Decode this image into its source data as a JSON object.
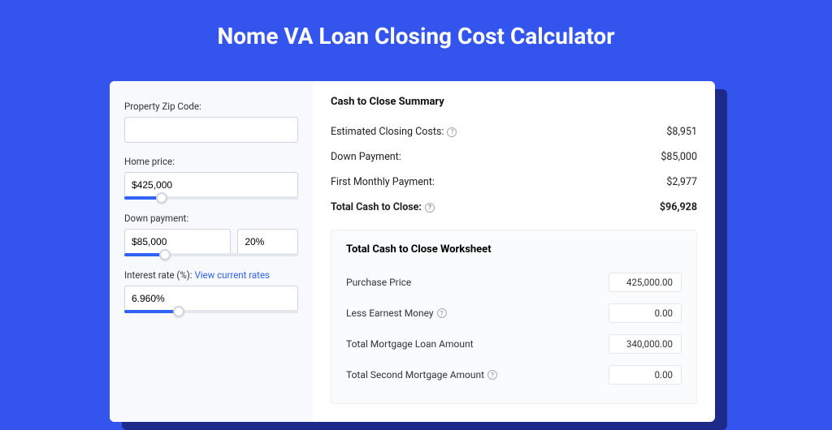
{
  "colors": {
    "page_bg": "#3355ee",
    "accent": "#3062f4",
    "card_bg": "#ffffff",
    "panel_bg": "#f7f9fc",
    "border": "#d0d5dd",
    "text": "#222222"
  },
  "header": {
    "title": "Nome VA Loan Closing Cost Calculator"
  },
  "form": {
    "zip_label": "Property Zip Code:",
    "zip_value": "",
    "home_price_label": "Home price:",
    "home_price_value": "$425,000",
    "home_price_slider_pct": 20,
    "down_payment_label": "Down payment:",
    "down_payment_value": "$85,000",
    "down_payment_pct": "20%",
    "down_payment_slider_pct": 22,
    "interest_label": "Interest rate (%):",
    "interest_link": "View current rates",
    "interest_value": "6.960%",
    "interest_slider_pct": 30
  },
  "summary": {
    "title": "Cash to Close Summary",
    "rows": [
      {
        "label": "Estimated Closing Costs:",
        "help": true,
        "value": "$8,951",
        "bold": false
      },
      {
        "label": "Down Payment:",
        "help": false,
        "value": "$85,000",
        "bold": false
      },
      {
        "label": "First Monthly Payment:",
        "help": false,
        "value": "$2,977",
        "bold": false
      },
      {
        "label": "Total Cash to Close:",
        "help": true,
        "value": "$96,928",
        "bold": true
      }
    ]
  },
  "worksheet": {
    "title": "Total Cash to Close Worksheet",
    "rows": [
      {
        "label": "Purchase Price",
        "help": false,
        "value": "425,000.00"
      },
      {
        "label": "Less Earnest Money",
        "help": true,
        "value": "0.00"
      },
      {
        "label": "Total Mortgage Loan Amount",
        "help": false,
        "value": "340,000.00"
      },
      {
        "label": "Total Second Mortgage Amount",
        "help": true,
        "value": "0.00"
      }
    ]
  }
}
